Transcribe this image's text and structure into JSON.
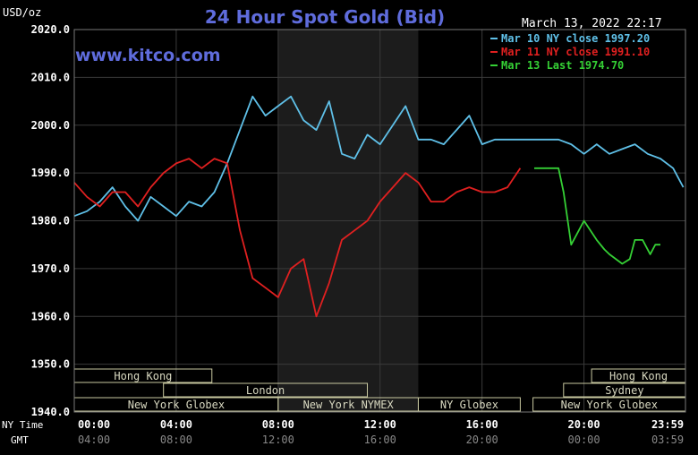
{
  "chart_data": {
    "type": "line",
    "title": "24 Hour Spot Gold (Bid)",
    "ylabel": "USD/oz",
    "watermark": "www.kitco.com",
    "timestamp": "March 13, 2022 22:17",
    "ylim": [
      1940,
      2020
    ],
    "y_ticks": [
      "2020.0",
      "2010.0",
      "2000.0",
      "1990.0",
      "1980.0",
      "1970.0",
      "1960.0",
      "1950.0",
      "1940.0"
    ],
    "y_tick_values": [
      2020,
      2010,
      2000,
      1990,
      1980,
      1970,
      1960,
      1950,
      1940
    ],
    "x_ticks_ny": [
      "00:00",
      "04:00",
      "08:00",
      "12:00",
      "16:00",
      "20:00",
      "23:59"
    ],
    "x_ticks_gmt": [
      "04:00",
      "08:00",
      "12:00",
      "16:00",
      "20:00",
      "00:00",
      "03:59"
    ],
    "x_tick_hours": [
      0,
      4,
      8,
      12,
      16,
      20,
      23.983
    ],
    "x_row_label_ny": "NY Time",
    "x_row_label_gmt": "GMT",
    "shaded_band_hours": [
      8.0,
      13.5
    ],
    "legend": [
      {
        "label": "Mar 10 NY close 1997.20",
        "color": "#5fc0e8"
      },
      {
        "label": "Mar 11 NY close 1991.10",
        "color": "#e02020"
      },
      {
        "label": "Mar 13 Last 1974.70",
        "color": "#35d035"
      }
    ],
    "sessions": [
      {
        "label": "Hong Kong",
        "start": 0,
        "end": 5.4,
        "row": 0
      },
      {
        "label": "London",
        "start": 3.5,
        "end": 11.5,
        "row": 1
      },
      {
        "label": "New York Globex",
        "start": 0,
        "end": 8.0,
        "row": 2
      },
      {
        "label": "New York NYMEX",
        "start": 8.0,
        "end": 13.5,
        "row": 2
      },
      {
        "label": "NY Globex",
        "start": 13.5,
        "end": 17.5,
        "row": 2
      },
      {
        "label": "Hong Kong",
        "start": 20.3,
        "end": 23.983,
        "row": 0
      },
      {
        "label": "Sydney",
        "start": 19.2,
        "end": 23.983,
        "row": 1
      },
      {
        "label": "New York Globex",
        "start": 18.0,
        "end": 23.983,
        "row": 2
      }
    ],
    "series": [
      {
        "name": "Mar 10 NY close 1997.20",
        "color": "#5fc0e8",
        "x": [
          0,
          0.5,
          1,
          1.5,
          2,
          2.5,
          3,
          3.5,
          4,
          4.5,
          5,
          5.5,
          6,
          6.5,
          7,
          7.5,
          8,
          8.5,
          9,
          9.5,
          10,
          10.5,
          11,
          11.5,
          12,
          12.5,
          13,
          13.5,
          14,
          14.5,
          15,
          15.5,
          16,
          16.5,
          17,
          17.5,
          18,
          18.5,
          19,
          19.5,
          20,
          20.5,
          21,
          21.5,
          22,
          22.5,
          23,
          23.5,
          23.9
        ],
        "values": [
          1981,
          1982,
          1984,
          1987,
          1983,
          1980,
          1985,
          1983,
          1981,
          1984,
          1983,
          1986,
          1992,
          1999,
          2006,
          2002,
          2004,
          2006,
          2001,
          1999,
          2005,
          1994,
          1993,
          1998,
          1996,
          2000,
          2004,
          1997,
          1997,
          1996,
          1999,
          2002,
          1996,
          1997,
          1997,
          1997,
          1997,
          1997,
          1997,
          1996,
          1994,
          1996,
          1994,
          1995,
          1996,
          1994,
          1993,
          1991,
          1987
        ]
      },
      {
        "name": "Mar 11 NY close 1991.10",
        "color": "#e02020",
        "x": [
          0,
          0.5,
          1,
          1.5,
          2,
          2.5,
          3,
          3.5,
          4,
          4.5,
          5,
          5.5,
          6,
          6.5,
          7,
          7.5,
          8,
          8.5,
          9,
          9.5,
          10,
          10.5,
          11,
          11.5,
          12,
          12.5,
          13,
          13.5,
          14,
          14.5,
          15,
          15.5,
          16,
          16.5,
          17,
          17.5
        ],
        "values": [
          1988,
          1985,
          1983,
          1986,
          1986,
          1983,
          1987,
          1990,
          1992,
          1993,
          1991,
          1993,
          1992,
          1978,
          1968,
          1966,
          1964,
          1970,
          1972,
          1960,
          1967,
          1976,
          1978,
          1980,
          1984,
          1987,
          1990,
          1988,
          1984,
          1984,
          1986,
          1987,
          1986,
          1986,
          1987,
          1991
        ]
      },
      {
        "name": "Mar 13 Last 1974.70",
        "color": "#35d035",
        "x": [
          18.05,
          18.5,
          19,
          19.2,
          19.5,
          20,
          20.5,
          20.8,
          21,
          21.5,
          21.8,
          22,
          22.3,
          22.6,
          22.8,
          23.0
        ],
        "values": [
          1991,
          1991,
          1991,
          1986,
          1975,
          1980,
          1976,
          1974,
          1973,
          1971,
          1972,
          1976,
          1976,
          1973,
          1975,
          1975
        ]
      }
    ]
  }
}
